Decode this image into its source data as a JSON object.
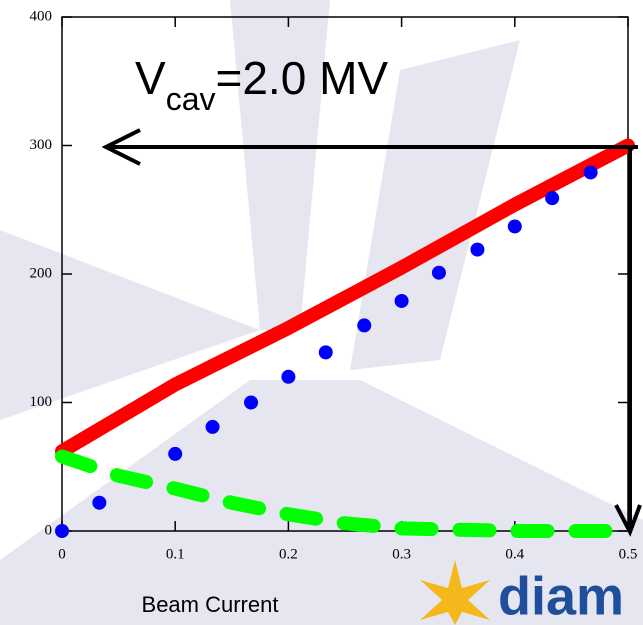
{
  "chart_data": {
    "type": "line",
    "annotation": {
      "main": "V",
      "sub": "cav",
      "rest": "=2.0 MV"
    },
    "x_label": "Beam Current",
    "logo": "diam",
    "xlim": [
      0,
      0.5
    ],
    "xticks": [
      0,
      0.1,
      0.2,
      0.3,
      0.4,
      0.5
    ],
    "ylim": [
      0,
      400
    ],
    "yticks": [
      0,
      100,
      200,
      300,
      400
    ],
    "series": [
      {
        "style": "solid",
        "color": "#ff0000",
        "x": [
          0,
          0.1,
          0.2,
          0.3,
          0.4,
          0.5
        ],
        "values": [
          62,
          114,
          158,
          205,
          254,
          300
        ]
      },
      {
        "style": "dots",
        "color": "#0000ff",
        "x": [
          0,
          0.033,
          0.1,
          0.133,
          0.167,
          0.2,
          0.233,
          0.267,
          0.3,
          0.333,
          0.367,
          0.4,
          0.433,
          0.467
        ],
        "values": [
          0,
          22,
          60,
          81,
          100,
          120,
          139,
          160,
          179,
          201,
          219,
          237,
          259,
          279
        ]
      },
      {
        "style": "dashed",
        "color": "#00ff00",
        "x": [
          0,
          0.05,
          0.1,
          0.15,
          0.2,
          0.25,
          0.3,
          0.35,
          0.4,
          0.5
        ],
        "values": [
          58,
          43,
          33,
          22,
          13,
          6,
          2,
          1,
          0,
          0
        ]
      }
    ]
  }
}
